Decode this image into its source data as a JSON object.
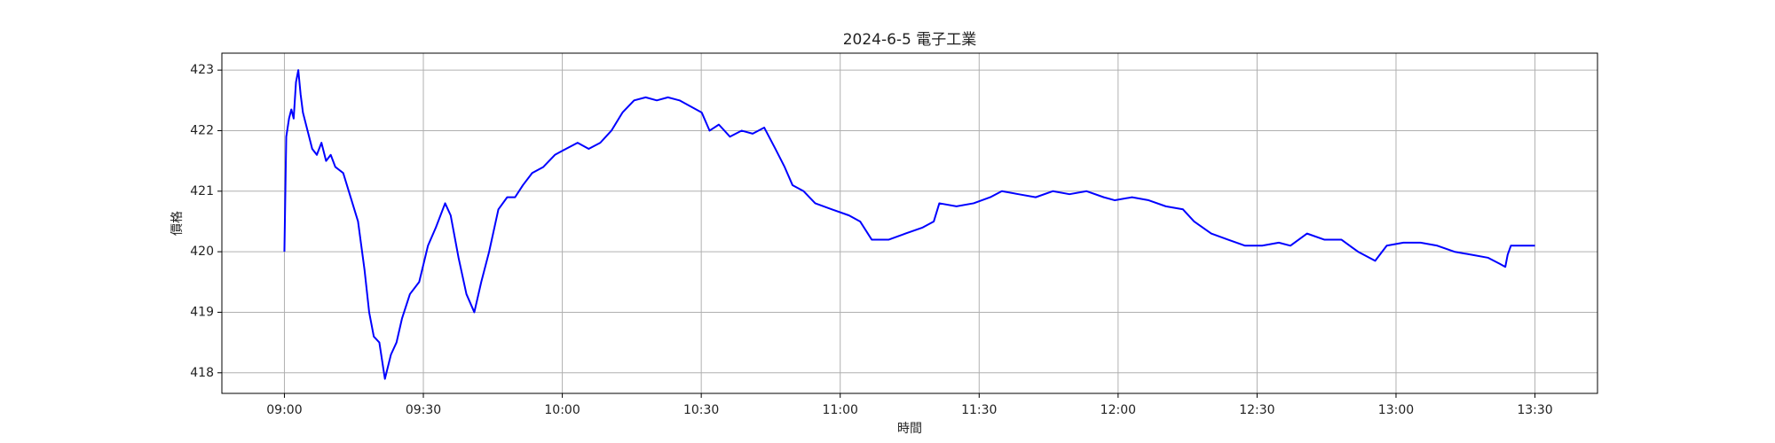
{
  "chart_data": {
    "type": "line",
    "title": "2024-6-5 電子工業",
    "x_label": "時間",
    "y_label": "價格",
    "color": "#0000ff",
    "grid": true,
    "x": [
      540,
      540.4,
      541,
      541.5,
      542,
      542.5,
      543,
      543.5,
      544,
      545,
      546,
      547,
      548,
      549,
      550,
      551,
      552.7,
      555.9,
      557.3,
      558.3,
      559.3,
      560.5,
      561.7,
      563,
      564.2,
      565.4,
      567.1,
      569.1,
      571,
      572.7,
      574.7,
      575.9,
      577.6,
      579.3,
      581,
      582.5,
      584.2,
      586.2,
      588.1,
      589.8,
      591.5,
      593.5,
      595.9,
      598.4,
      600.8,
      603.3,
      605.7,
      608.2,
      610.6,
      613,
      615.5,
      618,
      620.4,
      622.8,
      625.3,
      627.7,
      630.1,
      631.8,
      633.8,
      636.2,
      638.7,
      641.1,
      643.6,
      646,
      648,
      649.7,
      652.1,
      654.6,
      658.2,
      661.9,
      664.3,
      666.8,
      670.5,
      674.1,
      677.8,
      680.2,
      681.4,
      685.1,
      688.8,
      692.4,
      694.9,
      698.5,
      702.2,
      705.9,
      709.5,
      713.2,
      716.9,
      719.3,
      723,
      726.6,
      730.3,
      734,
      736.4,
      740.1,
      743.7,
      747.4,
      751.1,
      754.7,
      757.2,
      760.8,
      764.5,
      768.2,
      771.8,
      775.5,
      778,
      781.6,
      785.3,
      788.9,
      792.6,
      796.3,
      799.9,
      802.4,
      803.6,
      804.1,
      804.8,
      810
    ],
    "values": [
      420,
      421.9,
      422.2,
      422.35,
      422.2,
      422.8,
      423,
      422.6,
      422.3,
      422,
      421.7,
      421.6,
      421.8,
      421.5,
      421.6,
      421.4,
      421.3,
      420.5,
      419.7,
      419,
      418.6,
      418.5,
      417.9,
      418.3,
      418.5,
      418.9,
      419.3,
      419.5,
      420.1,
      420.4,
      420.8,
      420.6,
      419.9,
      419.3,
      419,
      419.5,
      420,
      420.7,
      420.9,
      420.9,
      421.1,
      421.3,
      421.4,
      421.6,
      421.7,
      421.8,
      421.7,
      421.8,
      422,
      422.3,
      422.5,
      422.55,
      422.5,
      422.55,
      422.5,
      422.4,
      422.3,
      422,
      422.1,
      421.9,
      422,
      421.95,
      422.05,
      421.7,
      421.4,
      421.1,
      421,
      420.8,
      420.7,
      420.6,
      420.5,
      420.2,
      420.2,
      420.3,
      420.4,
      420.5,
      420.8,
      420.75,
      420.8,
      420.9,
      421,
      420.95,
      420.9,
      421,
      420.95,
      421,
      420.9,
      420.85,
      420.9,
      420.85,
      420.75,
      420.7,
      420.5,
      420.3,
      420.2,
      420.1,
      420.1,
      420.15,
      420.1,
      420.3,
      420.2,
      420.2,
      420,
      419.85,
      420.1,
      420.15,
      420.15,
      420.1,
      420,
      419.95,
      419.9,
      419.8,
      419.75,
      419.95,
      420.1,
      420.1
    ],
    "xlim": [
      526.5,
      823.5
    ],
    "ylim": [
      417.66,
      423.28
    ],
    "xticks": [
      {
        "value": 540,
        "label": "09:00"
      },
      {
        "value": 570,
        "label": "09:30"
      },
      {
        "value": 600,
        "label": "10:00"
      },
      {
        "value": 630,
        "label": "10:30"
      },
      {
        "value": 660,
        "label": "11:00"
      },
      {
        "value": 690,
        "label": "11:30"
      },
      {
        "value": 720,
        "label": "12:00"
      },
      {
        "value": 750,
        "label": "12:30"
      },
      {
        "value": 780,
        "label": "13:00"
      },
      {
        "value": 810,
        "label": "13:30"
      }
    ],
    "yticks": [
      418,
      419,
      420,
      421,
      422,
      423
    ]
  }
}
